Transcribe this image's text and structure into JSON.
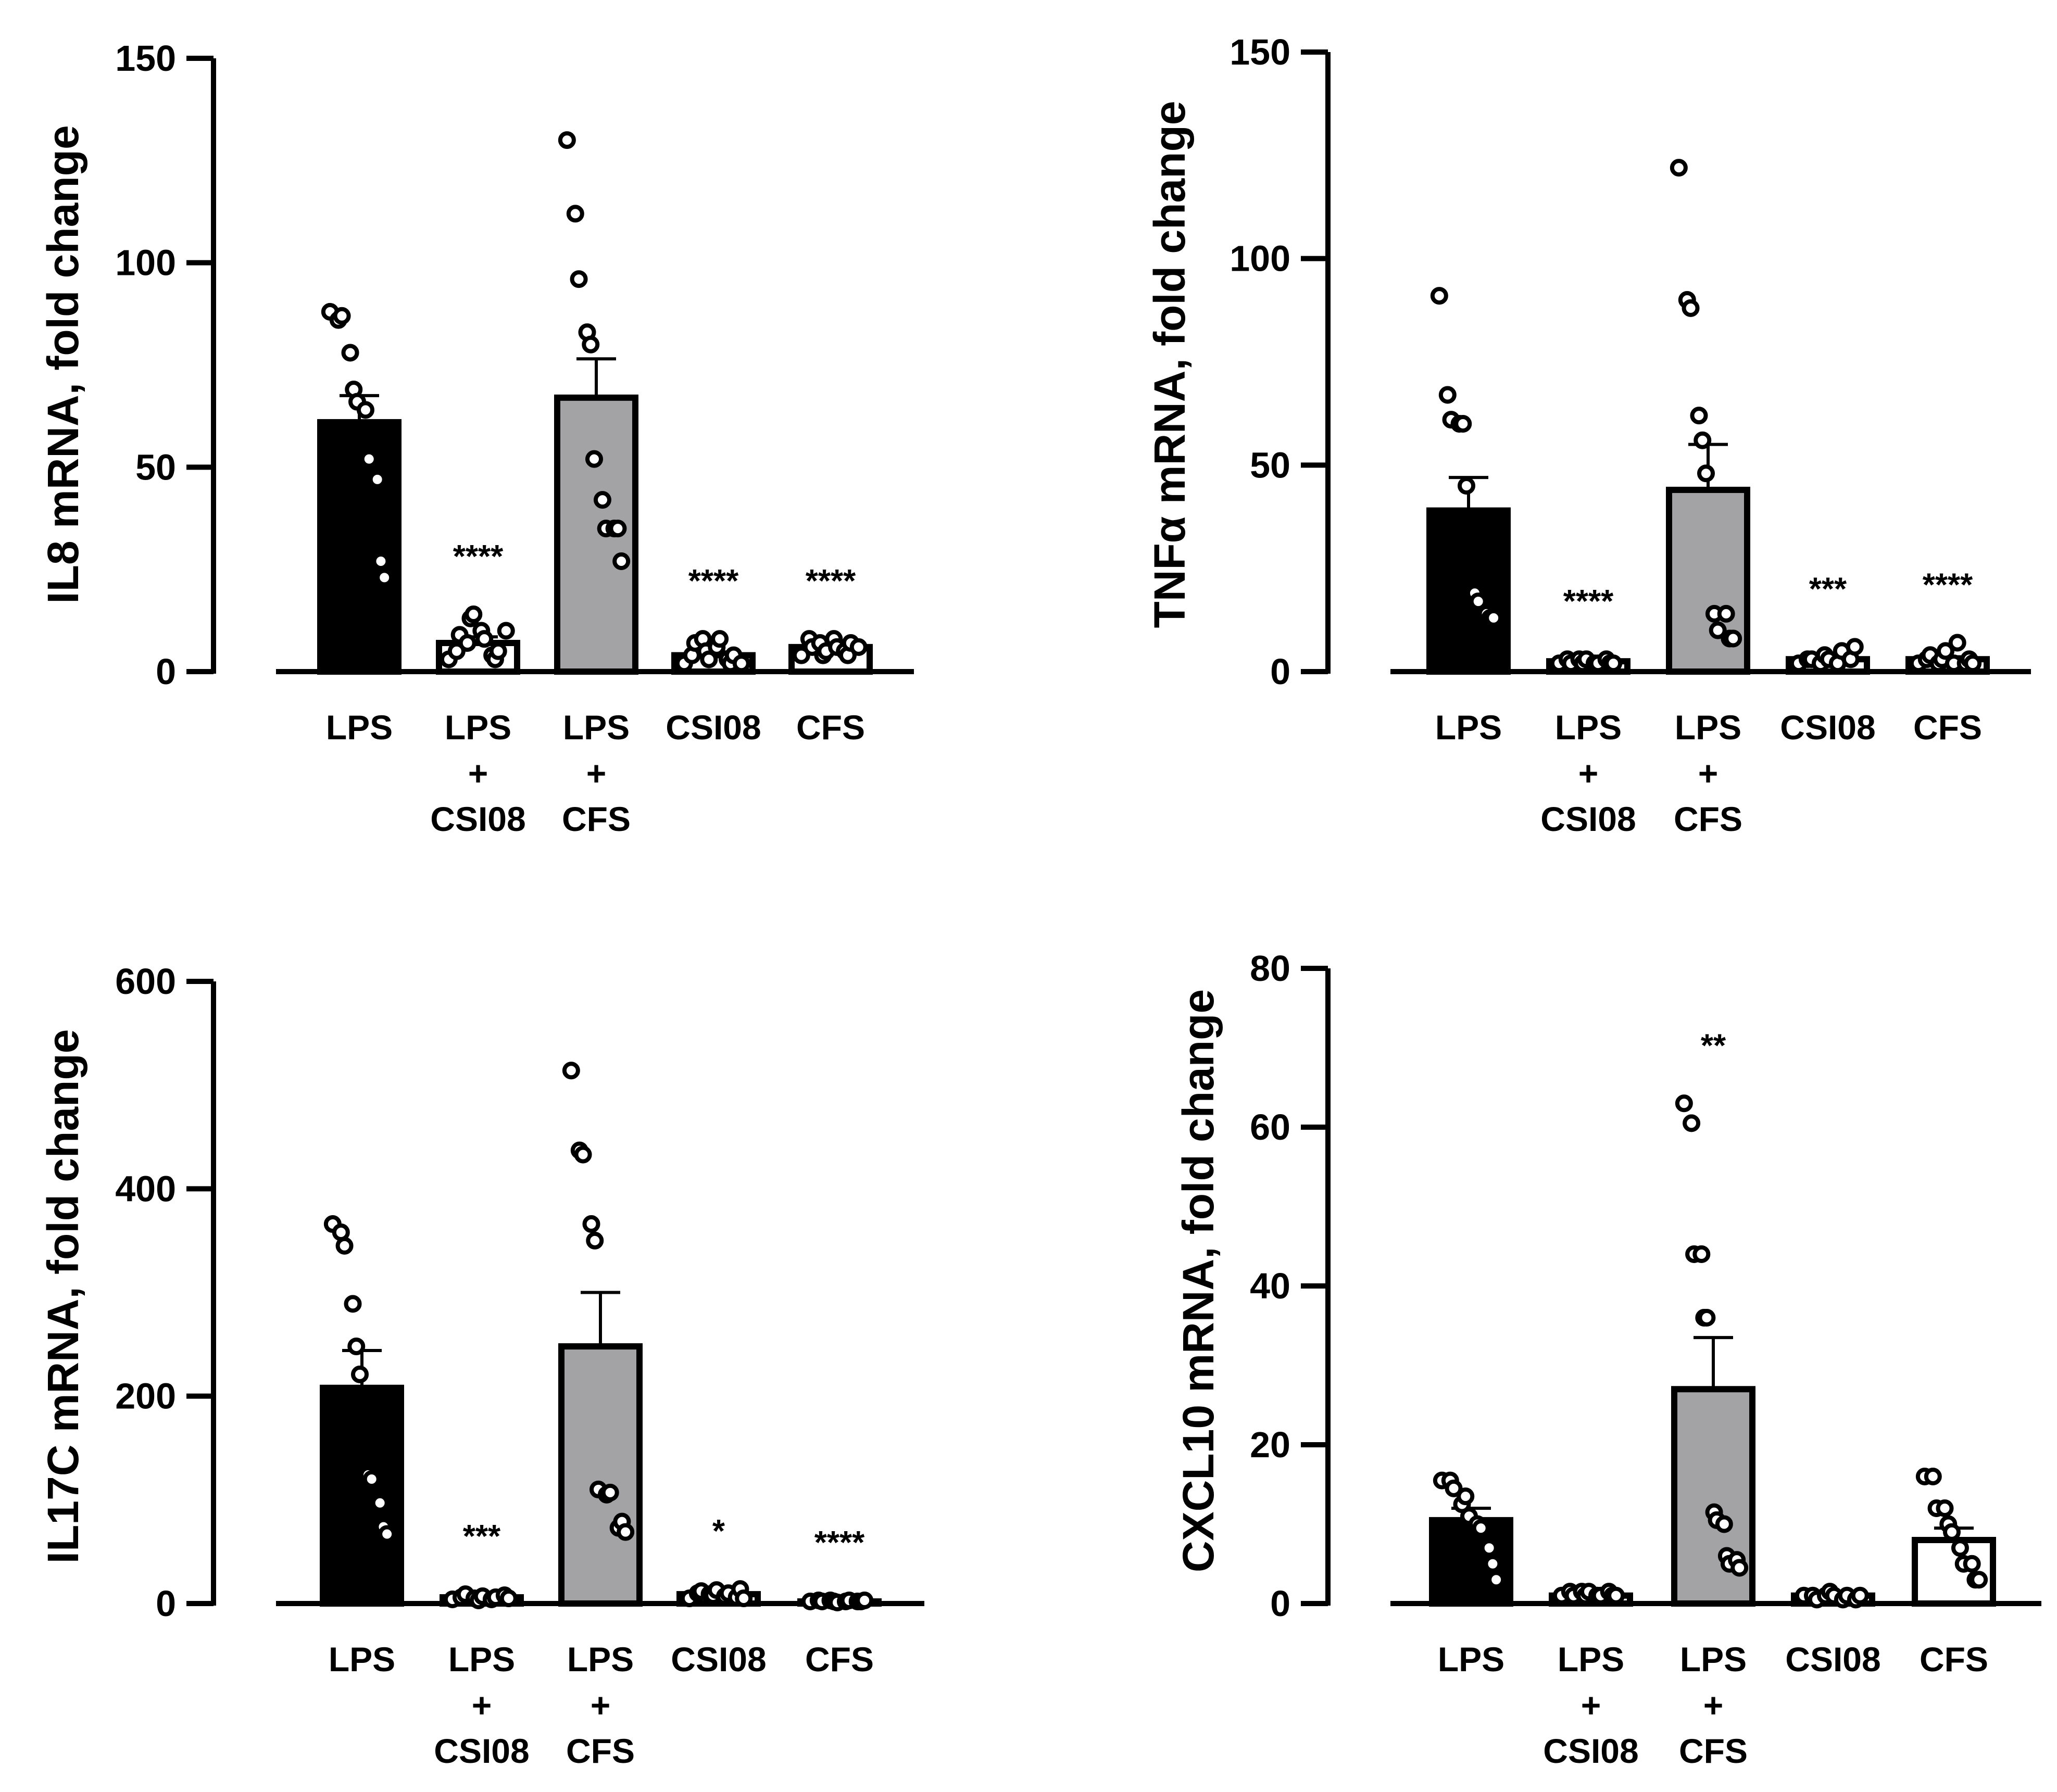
{
  "colors": {
    "black_bar": "#000000",
    "gray_bar": "#a3a3a6",
    "point_fill": "#ffffff",
    "stroke": "#000000"
  },
  "chart_data": [
    {
      "type": "bar",
      "ylabel": "IL8 mRNA, fold change",
      "ylim": [
        0,
        150
      ],
      "yticks": [
        0,
        50,
        100,
        150
      ],
      "categories": [
        [
          "LPS"
        ],
        [
          "LPS",
          "+",
          "CSI08"
        ],
        [
          "LPS",
          "+",
          "CFS"
        ],
        [
          "CSI08"
        ],
        [
          "CFS"
        ]
      ],
      "bar_fill": [
        "black",
        "white",
        "gray",
        "white",
        "white"
      ],
      "values": [
        61,
        7,
        67,
        4,
        6
      ],
      "sem": [
        6.5,
        1.5,
        9.5,
        0.8,
        0.6
      ],
      "significance": [
        "",
        "****",
        "",
        "****",
        "****"
      ],
      "points": [
        [
          88,
          86,
          87,
          78,
          69,
          66,
          64,
          52,
          47,
          27,
          23
        ],
        [
          3,
          5,
          9,
          7,
          13,
          14,
          10,
          8,
          4,
          3,
          5,
          10
        ],
        [
          130,
          112,
          96,
          83,
          80,
          52,
          42,
          35,
          35,
          35,
          27
        ],
        [
          2,
          4,
          7,
          8,
          5,
          3,
          6,
          8,
          3,
          2,
          4,
          2
        ],
        [
          4,
          8,
          6,
          7,
          4,
          5,
          8,
          6,
          5,
          4,
          7,
          6
        ]
      ]
    },
    {
      "type": "bar",
      "ylabel": "TNFα mRNA, fold change",
      "ylim": [
        0,
        150
      ],
      "yticks": [
        0,
        50,
        100,
        150
      ],
      "categories": [
        [
          "LPS"
        ],
        [
          "LPS",
          "+",
          "CSI08"
        ],
        [
          "LPS",
          "+",
          "CFS"
        ],
        [
          "CSI08"
        ],
        [
          "CFS"
        ]
      ],
      "bar_fill": [
        "black",
        "white",
        "gray",
        "white",
        "white"
      ],
      "values": [
        39,
        2.5,
        44,
        3,
        3
      ],
      "sem": [
        8,
        0.4,
        11,
        0.5,
        0.6
      ],
      "significance": [
        "",
        "****",
        "",
        "***",
        "****"
      ],
      "points": [
        [
          91,
          67,
          61,
          60,
          60,
          45,
          19,
          17,
          14,
          13,
          13
        ],
        [
          2,
          3,
          2,
          3,
          2,
          3,
          2,
          2,
          3,
          2,
          2
        ],
        [
          122,
          90,
          88,
          62,
          56,
          48,
          14,
          10,
          14,
          8,
          8
        ],
        [
          2,
          3,
          3,
          2,
          4,
          3,
          2,
          5,
          3,
          6
        ],
        [
          2,
          3,
          4,
          2,
          3,
          5,
          2,
          7,
          2,
          3,
          2
        ]
      ]
    },
    {
      "type": "bar",
      "ylabel": "IL17C mRNA, fold change",
      "ylim": [
        0,
        600
      ],
      "yticks": [
        0,
        200,
        400,
        600
      ],
      "categories": [
        [
          "LPS"
        ],
        [
          "LPS",
          "+",
          "CSI08"
        ],
        [
          "LPS",
          "+",
          "CFS"
        ],
        [
          "CSI08"
        ],
        [
          "CFS"
        ]
      ],
      "bar_fill": [
        "black",
        "white",
        "gray",
        "white",
        "white"
      ],
      "values": [
        208,
        6,
        248,
        9,
        2
      ],
      "sem": [
        36,
        1.5,
        52,
        2,
        0.3
      ],
      "significance": [
        "",
        "***",
        "",
        "*",
        "****"
      ],
      "points": [
        [
          366,
          358,
          345,
          289,
          248,
          221,
          124,
          120,
          97,
          74,
          67
        ],
        [
          4,
          6,
          9,
          5,
          3,
          7,
          4,
          6,
          8,
          5
        ],
        [
          514,
          437,
          433,
          366,
          350,
          110,
          105,
          107,
          73,
          79,
          69
        ],
        [
          5,
          10,
          12,
          9,
          8,
          13,
          7,
          10,
          6,
          14,
          5
        ],
        [
          2,
          3,
          2,
          3,
          2,
          1,
          2,
          3,
          2,
          2,
          3
        ]
      ]
    },
    {
      "type": "bar",
      "ylabel": "CXCL10 mRNA, fold change",
      "ylim": [
        0,
        80
      ],
      "yticks": [
        0,
        20,
        40,
        60,
        80
      ],
      "categories": [
        [
          "LPS"
        ],
        [
          "LPS",
          "+",
          "CSI08"
        ],
        [
          "LPS",
          "+",
          "CFS"
        ],
        [
          "CSI08"
        ],
        [
          "CFS"
        ]
      ],
      "bar_fill": [
        "black",
        "white",
        "gray",
        "white",
        "white"
      ],
      "values": [
        10.5,
        1,
        27,
        1,
        8
      ],
      "sem": [
        1.5,
        0.2,
        6.5,
        0.2,
        1.5
      ],
      "significance": [
        "",
        "",
        "**",
        "",
        ""
      ],
      "points": [
        [
          15.5,
          15.5,
          14.5,
          12.5,
          13.5,
          11,
          10,
          9.5,
          7,
          5,
          3
        ],
        [
          1,
          1.5,
          1,
          1.5,
          1,
          1.5,
          1,
          1,
          1.5,
          1,
          1
        ],
        [
          63,
          60.5,
          44,
          44,
          36,
          36,
          11.5,
          10.5,
          10,
          6,
          5,
          5.5,
          4.5
        ],
        [
          1,
          1,
          0.5,
          1,
          1.5,
          1,
          0.5,
          1,
          0.5,
          1
        ],
        [
          16,
          16,
          12,
          12,
          10,
          9,
          7,
          5,
          5,
          3,
          3
        ]
      ]
    }
  ]
}
